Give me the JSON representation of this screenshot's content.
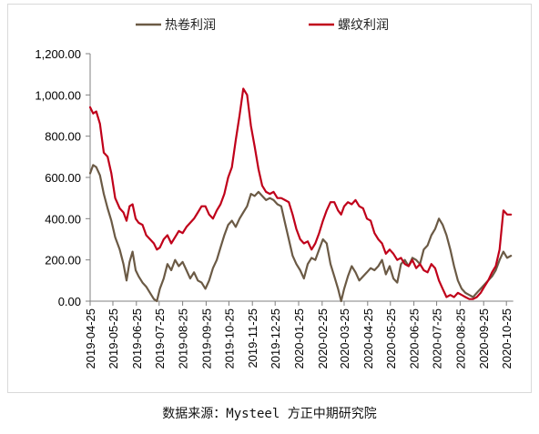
{
  "chart_data": {
    "type": "line",
    "source": "数据来源：Mysteel 方正中期研究院",
    "x_ticks": [
      "2019-04-25",
      "2019-05-25",
      "2019-06-25",
      "2019-07-25",
      "2019-08-25",
      "2019-09-25",
      "2019-10-25",
      "2019-11-25",
      "2019-12-25",
      "2020-01-25",
      "2020-02-25",
      "2020-03-25",
      "2020-04-25",
      "2020-05-25",
      "2020-06-25",
      "2020-07-25",
      "2020-08-25",
      "2020-09-25",
      "2020-10-25"
    ],
    "y_ticks": [
      "0.00",
      "200.00",
      "400.00",
      "600.00",
      "800.00",
      "1,000.00",
      "1,200.00"
    ],
    "ylim": [
      0,
      1200
    ],
    "legend_position": "top",
    "grid": false,
    "series": [
      {
        "name": "热卷利润",
        "color": "#6b5a45",
        "points": [
          [
            "2019-04-25",
            620
          ],
          [
            "2019-04-29",
            660
          ],
          [
            "2019-05-03",
            650
          ],
          [
            "2019-05-08",
            610
          ],
          [
            "2019-05-13",
            520
          ],
          [
            "2019-05-18",
            450
          ],
          [
            "2019-05-23",
            390
          ],
          [
            "2019-05-28",
            310
          ],
          [
            "2019-06-03",
            250
          ],
          [
            "2019-06-08",
            180
          ],
          [
            "2019-06-12",
            100
          ],
          [
            "2019-06-16",
            190
          ],
          [
            "2019-06-20",
            240
          ],
          [
            "2019-06-24",
            150
          ],
          [
            "2019-06-28",
            120
          ],
          [
            "2019-07-03",
            90
          ],
          [
            "2019-07-08",
            70
          ],
          [
            "2019-07-13",
            40
          ],
          [
            "2019-07-18",
            10
          ],
          [
            "2019-07-22",
            0
          ],
          [
            "2019-07-26",
            60
          ],
          [
            "2019-07-31",
            110
          ],
          [
            "2019-08-05",
            180
          ],
          [
            "2019-08-10",
            150
          ],
          [
            "2019-08-15",
            200
          ],
          [
            "2019-08-20",
            170
          ],
          [
            "2019-08-25",
            190
          ],
          [
            "2019-08-30",
            150
          ],
          [
            "2019-09-04",
            110
          ],
          [
            "2019-09-09",
            140
          ],
          [
            "2019-09-14",
            100
          ],
          [
            "2019-09-19",
            90
          ],
          [
            "2019-09-24",
            60
          ],
          [
            "2019-09-29",
            100
          ],
          [
            "2019-10-04",
            160
          ],
          [
            "2019-10-09",
            200
          ],
          [
            "2019-10-14",
            260
          ],
          [
            "2019-10-19",
            320
          ],
          [
            "2019-10-24",
            370
          ],
          [
            "2019-10-29",
            390
          ],
          [
            "2019-11-03",
            360
          ],
          [
            "2019-11-08",
            400
          ],
          [
            "2019-11-13",
            430
          ],
          [
            "2019-11-18",
            460
          ],
          [
            "2019-11-23",
            520
          ],
          [
            "2019-11-28",
            510
          ],
          [
            "2019-12-03",
            530
          ],
          [
            "2019-12-08",
            510
          ],
          [
            "2019-12-13",
            490
          ],
          [
            "2019-12-18",
            500
          ],
          [
            "2019-12-23",
            490
          ],
          [
            "2019-12-28",
            470
          ],
          [
            "2020-01-02",
            460
          ],
          [
            "2020-01-07",
            380
          ],
          [
            "2020-01-12",
            300
          ],
          [
            "2020-01-17",
            220
          ],
          [
            "2020-01-22",
            180
          ],
          [
            "2020-01-27",
            150
          ],
          [
            "2020-02-01",
            110
          ],
          [
            "2020-02-06",
            180
          ],
          [
            "2020-02-11",
            210
          ],
          [
            "2020-02-16",
            200
          ],
          [
            "2020-02-21",
            250
          ],
          [
            "2020-02-26",
            300
          ],
          [
            "2020-03-02",
            280
          ],
          [
            "2020-03-07",
            180
          ],
          [
            "2020-03-12",
            120
          ],
          [
            "2020-03-17",
            60
          ],
          [
            "2020-03-21",
            0
          ],
          [
            "2020-03-25",
            60
          ],
          [
            "2020-03-30",
            120
          ],
          [
            "2020-04-04",
            170
          ],
          [
            "2020-04-09",
            140
          ],
          [
            "2020-04-14",
            100
          ],
          [
            "2020-04-19",
            120
          ],
          [
            "2020-04-24",
            140
          ],
          [
            "2020-04-29",
            160
          ],
          [
            "2020-05-04",
            150
          ],
          [
            "2020-05-09",
            170
          ],
          [
            "2020-05-14",
            200
          ],
          [
            "2020-05-19",
            130
          ],
          [
            "2020-05-24",
            170
          ],
          [
            "2020-05-29",
            110
          ],
          [
            "2020-06-03",
            90
          ],
          [
            "2020-06-08",
            180
          ],
          [
            "2020-06-13",
            200
          ],
          [
            "2020-06-18",
            170
          ],
          [
            "2020-06-23",
            210
          ],
          [
            "2020-06-28",
            200
          ],
          [
            "2020-07-03",
            180
          ],
          [
            "2020-07-08",
            250
          ],
          [
            "2020-07-13",
            270
          ],
          [
            "2020-07-18",
            320
          ],
          [
            "2020-07-23",
            350
          ],
          [
            "2020-07-28",
            400
          ],
          [
            "2020-08-02",
            370
          ],
          [
            "2020-08-07",
            320
          ],
          [
            "2020-08-12",
            250
          ],
          [
            "2020-08-17",
            170
          ],
          [
            "2020-08-22",
            100
          ],
          [
            "2020-08-27",
            60
          ],
          [
            "2020-09-01",
            40
          ],
          [
            "2020-09-06",
            30
          ],
          [
            "2020-09-11",
            20
          ],
          [
            "2020-09-16",
            40
          ],
          [
            "2020-09-21",
            60
          ],
          [
            "2020-09-26",
            80
          ],
          [
            "2020-10-01",
            100
          ],
          [
            "2020-10-06",
            120
          ],
          [
            "2020-10-11",
            150
          ],
          [
            "2020-10-16",
            200
          ],
          [
            "2020-10-21",
            240
          ],
          [
            "2020-10-26",
            210
          ],
          [
            "2020-10-31",
            220
          ]
        ]
      },
      {
        "name": "螺纹利润",
        "color": "#c0001a",
        "points": [
          [
            "2019-04-25",
            940
          ],
          [
            "2019-04-29",
            910
          ],
          [
            "2019-05-03",
            920
          ],
          [
            "2019-05-08",
            860
          ],
          [
            "2019-05-13",
            720
          ],
          [
            "2019-05-18",
            700
          ],
          [
            "2019-05-23",
            620
          ],
          [
            "2019-05-28",
            500
          ],
          [
            "2019-06-03",
            450
          ],
          [
            "2019-06-08",
            430
          ],
          [
            "2019-06-12",
            390
          ],
          [
            "2019-06-16",
            460
          ],
          [
            "2019-06-20",
            470
          ],
          [
            "2019-06-24",
            400
          ],
          [
            "2019-06-28",
            380
          ],
          [
            "2019-07-03",
            370
          ],
          [
            "2019-07-08",
            320
          ],
          [
            "2019-07-13",
            300
          ],
          [
            "2019-07-18",
            280
          ],
          [
            "2019-07-22",
            250
          ],
          [
            "2019-07-26",
            260
          ],
          [
            "2019-07-31",
            300
          ],
          [
            "2019-08-05",
            320
          ],
          [
            "2019-08-10",
            280
          ],
          [
            "2019-08-15",
            310
          ],
          [
            "2019-08-20",
            340
          ],
          [
            "2019-08-25",
            330
          ],
          [
            "2019-08-30",
            360
          ],
          [
            "2019-09-04",
            380
          ],
          [
            "2019-09-09",
            400
          ],
          [
            "2019-09-14",
            430
          ],
          [
            "2019-09-19",
            460
          ],
          [
            "2019-09-24",
            460
          ],
          [
            "2019-09-29",
            420
          ],
          [
            "2019-10-04",
            400
          ],
          [
            "2019-10-09",
            440
          ],
          [
            "2019-10-14",
            470
          ],
          [
            "2019-10-19",
            520
          ],
          [
            "2019-10-24",
            600
          ],
          [
            "2019-10-29",
            650
          ],
          [
            "2019-11-03",
            780
          ],
          [
            "2019-11-08",
            900
          ],
          [
            "2019-11-13",
            1030
          ],
          [
            "2019-11-18",
            1000
          ],
          [
            "2019-11-23",
            850
          ],
          [
            "2019-11-28",
            750
          ],
          [
            "2019-12-03",
            640
          ],
          [
            "2019-12-08",
            560
          ],
          [
            "2019-12-13",
            530
          ],
          [
            "2019-12-18",
            520
          ],
          [
            "2019-12-23",
            530
          ],
          [
            "2019-12-28",
            500
          ],
          [
            "2020-01-02",
            500
          ],
          [
            "2020-01-07",
            490
          ],
          [
            "2020-01-12",
            480
          ],
          [
            "2020-01-17",
            420
          ],
          [
            "2020-01-22",
            350
          ],
          [
            "2020-01-27",
            300
          ],
          [
            "2020-02-01",
            280
          ],
          [
            "2020-02-06",
            290
          ],
          [
            "2020-02-11",
            250
          ],
          [
            "2020-02-16",
            280
          ],
          [
            "2020-02-21",
            330
          ],
          [
            "2020-02-26",
            390
          ],
          [
            "2020-03-02",
            440
          ],
          [
            "2020-03-07",
            480
          ],
          [
            "2020-03-12",
            480
          ],
          [
            "2020-03-17",
            440
          ],
          [
            "2020-03-21",
            420
          ],
          [
            "2020-03-25",
            460
          ],
          [
            "2020-03-30",
            480
          ],
          [
            "2020-04-04",
            470
          ],
          [
            "2020-04-09",
            490
          ],
          [
            "2020-04-14",
            460
          ],
          [
            "2020-04-19",
            450
          ],
          [
            "2020-04-24",
            400
          ],
          [
            "2020-04-29",
            390
          ],
          [
            "2020-05-04",
            330
          ],
          [
            "2020-05-09",
            300
          ],
          [
            "2020-05-14",
            280
          ],
          [
            "2020-05-19",
            230
          ],
          [
            "2020-05-24",
            250
          ],
          [
            "2020-05-29",
            230
          ],
          [
            "2020-06-03",
            200
          ],
          [
            "2020-06-08",
            210
          ],
          [
            "2020-06-13",
            180
          ],
          [
            "2020-06-18",
            170
          ],
          [
            "2020-06-23",
            200
          ],
          [
            "2020-06-28",
            160
          ],
          [
            "2020-07-03",
            180
          ],
          [
            "2020-07-08",
            150
          ],
          [
            "2020-07-13",
            140
          ],
          [
            "2020-07-18",
            180
          ],
          [
            "2020-07-23",
            160
          ],
          [
            "2020-07-28",
            100
          ],
          [
            "2020-08-02",
            60
          ],
          [
            "2020-08-07",
            20
          ],
          [
            "2020-08-12",
            30
          ],
          [
            "2020-08-17",
            20
          ],
          [
            "2020-08-22",
            40
          ],
          [
            "2020-08-27",
            30
          ],
          [
            "2020-09-01",
            20
          ],
          [
            "2020-09-06",
            10
          ],
          [
            "2020-09-11",
            10
          ],
          [
            "2020-09-16",
            20
          ],
          [
            "2020-09-21",
            40
          ],
          [
            "2020-09-26",
            70
          ],
          [
            "2020-10-01",
            100
          ],
          [
            "2020-10-06",
            140
          ],
          [
            "2020-10-11",
            170
          ],
          [
            "2020-10-16",
            250
          ],
          [
            "2020-10-21",
            440
          ],
          [
            "2020-10-26",
            420
          ],
          [
            "2020-10-31",
            420
          ]
        ]
      }
    ]
  }
}
